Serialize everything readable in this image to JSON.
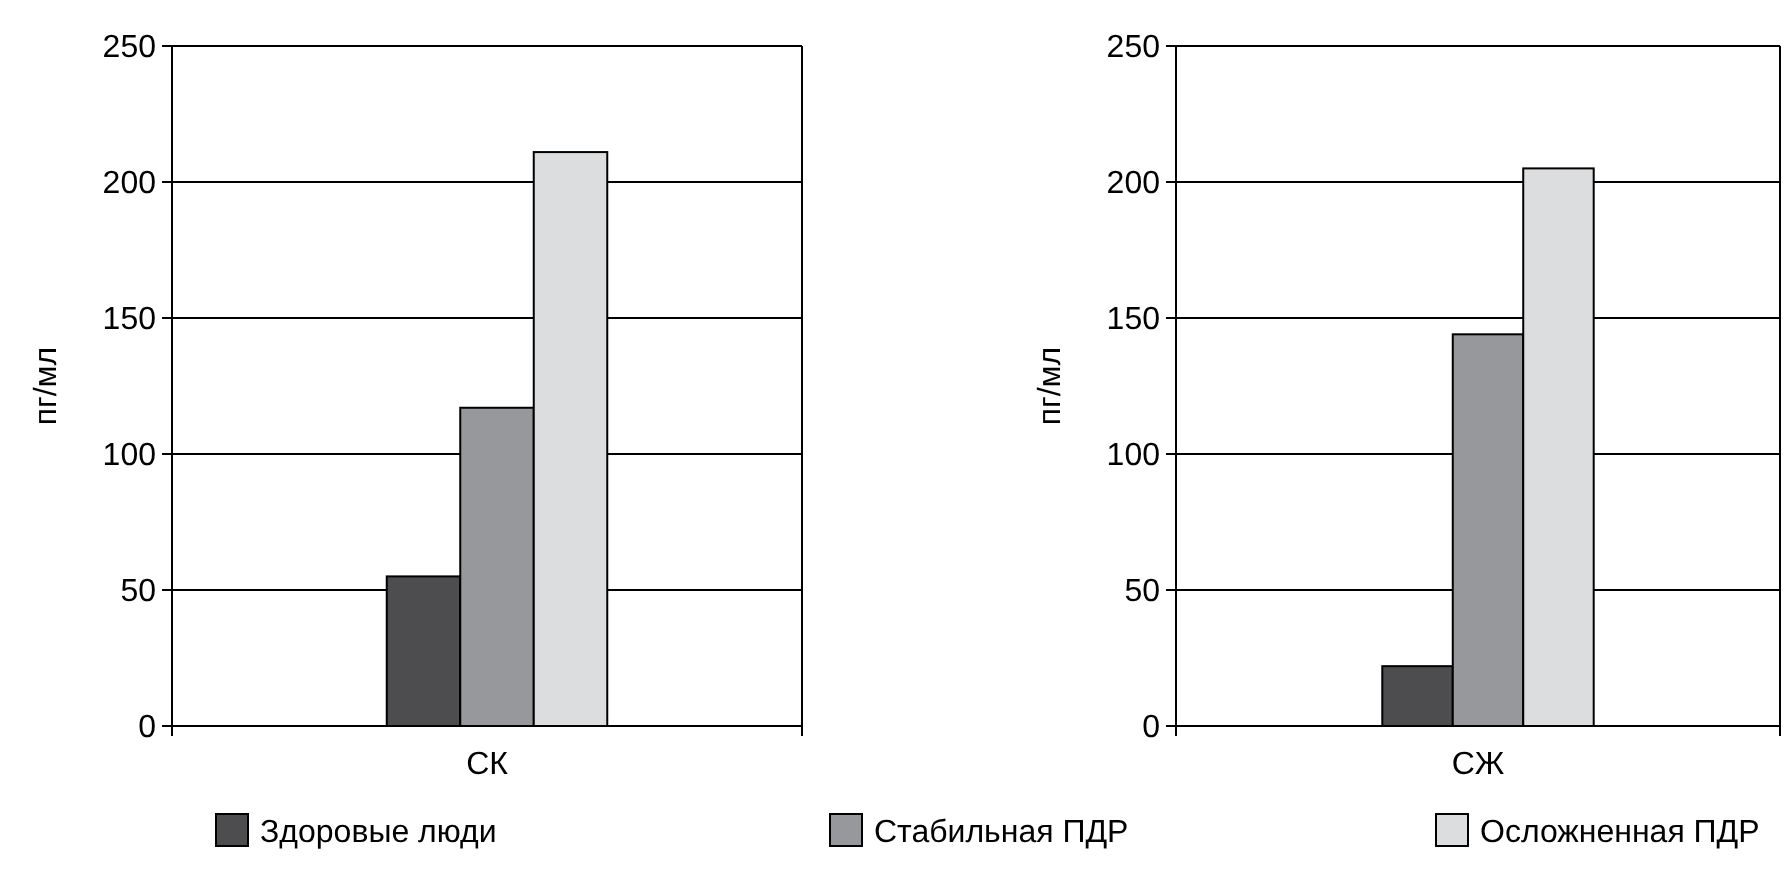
{
  "chart_data": [
    {
      "type": "bar",
      "ylabel": "пг/мл",
      "categories": [
        "СК"
      ],
      "ylim": [
        0,
        250
      ],
      "yticks": [
        0,
        50,
        100,
        150,
        200,
        250
      ],
      "grid": "y",
      "legend": "bottom",
      "series": [
        {
          "name": "Здоровые люди",
          "color": "#4d4d4f",
          "values": [
            55
          ]
        },
        {
          "name": "Стабильная ПДР",
          "color": "#97989b",
          "values": [
            117
          ]
        },
        {
          "name": "Осложненная ПДР",
          "color": "#dcdddf",
          "values": [
            211
          ]
        }
      ]
    },
    {
      "type": "bar",
      "ylabel": "пг/мл",
      "categories": [
        "СЖ"
      ],
      "ylim": [
        0,
        250
      ],
      "yticks": [
        0,
        50,
        100,
        150,
        200,
        250
      ],
      "grid": "y",
      "series": [
        {
          "color": "#4d4d4f",
          "values": [
            22
          ]
        },
        {
          "color": "#97989b",
          "values": [
            144
          ]
        },
        {
          "color": "#dcdddf",
          "values": [
            205
          ]
        }
      ]
    }
  ]
}
